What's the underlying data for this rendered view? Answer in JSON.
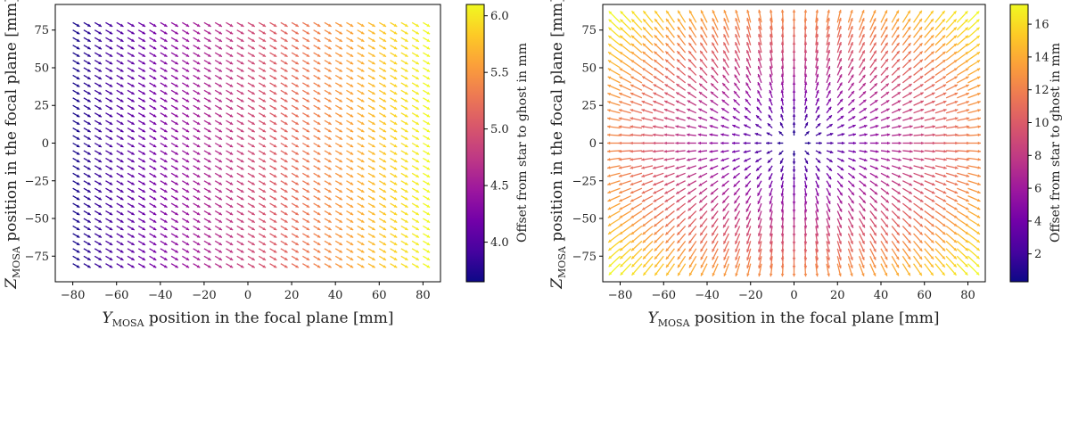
{
  "chart_data": [
    {
      "type": "quiver",
      "xlabel_symbol": "Y",
      "xlabel_sub": "MOSA",
      "xlabel_rest": " position in the focal plane [mm]",
      "ylabel_symbol": "Z",
      "ylabel_sub": "MOSA",
      "ylabel_rest": " position in the focal plane [mm]",
      "xlim": [
        -88,
        88
      ],
      "ylim": [
        -92,
        92
      ],
      "xticks": [
        -80,
        -60,
        -40,
        -20,
        0,
        20,
        40,
        60,
        80
      ],
      "yticks": [
        -75,
        -50,
        -25,
        0,
        25,
        50,
        75
      ],
      "grid_range": [
        -80,
        80
      ],
      "grid_step": 5,
      "field": "uniform offset increasing with Y",
      "offset_range": [
        3.7,
        6.1
      ],
      "colorbar": {
        "label": "Offset from star to ghost in mm",
        "ticks": [
          4.0,
          4.5,
          5.0,
          5.5,
          6.0
        ],
        "range": [
          3.65,
          6.1
        ],
        "colormap": "plasma"
      },
      "grid": false
    },
    {
      "type": "quiver",
      "xlabel_symbol": "Y",
      "xlabel_sub": "MOSA",
      "xlabel_rest": " position in the focal plane [mm]",
      "ylabel_symbol": "Z",
      "ylabel_sub": "MOSA",
      "ylabel_rest": " position in the focal plane [mm]",
      "xlim": [
        -88,
        88
      ],
      "ylim": [
        -92,
        92
      ],
      "xticks": [
        -80,
        -60,
        -40,
        -20,
        0,
        20,
        40,
        60,
        80
      ],
      "yticks": [
        -75,
        -50,
        -25,
        0,
        25,
        50,
        75
      ],
      "grid_range": [
        -80,
        80
      ],
      "grid_step": 5,
      "field": "radial offset from center",
      "offset_range": [
        0.3,
        17.2
      ],
      "colorbar": {
        "label": "Offset from star to ghost in mm",
        "ticks": [
          2,
          4,
          6,
          8,
          10,
          12,
          14,
          16
        ],
        "range": [
          0.3,
          17.2
        ],
        "colormap": "plasma"
      },
      "grid": false
    }
  ],
  "colors": {
    "plasma": [
      "#0d0887",
      "#46039f",
      "#7201a8",
      "#9c179e",
      "#bd3786",
      "#d8576b",
      "#ed7953",
      "#fb9f3a",
      "#fdca26",
      "#f0f921"
    ]
  }
}
